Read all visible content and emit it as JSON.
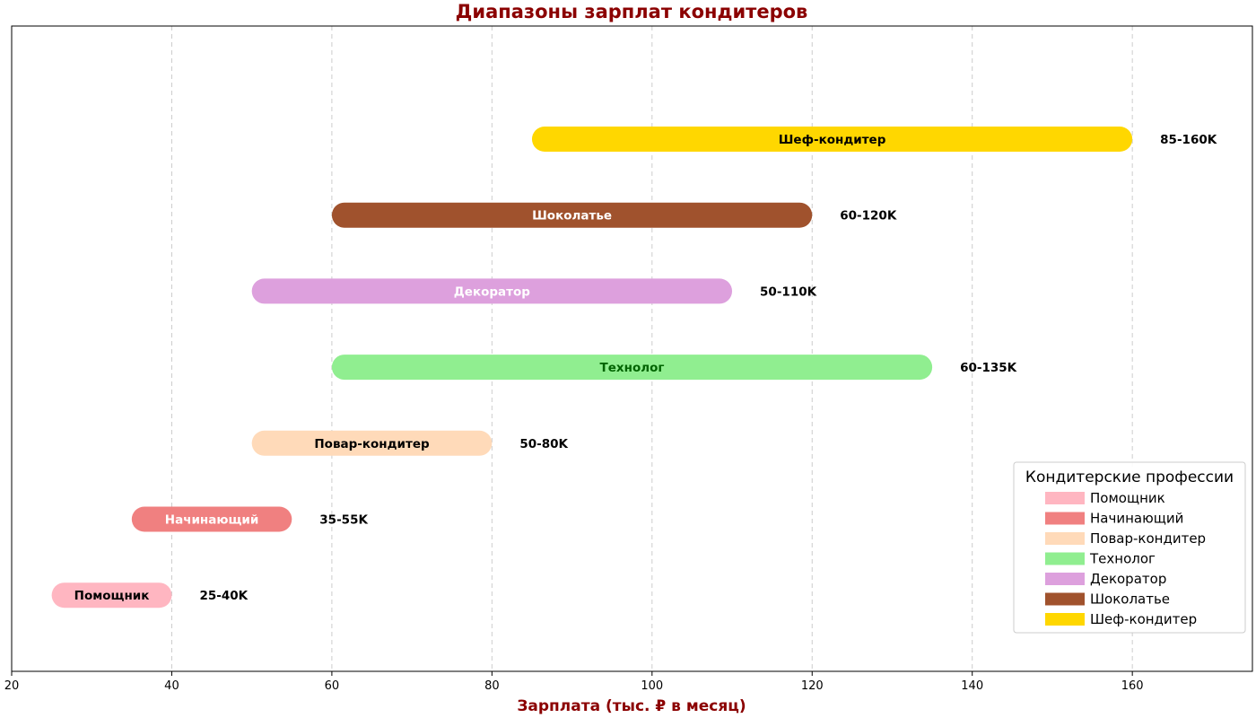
{
  "chart_data": {
    "type": "range-bar",
    "title": "Диапазоны зарплат кондитеров",
    "xlabel": "Зарплата (тыс. ₽ в месяц)",
    "ylabel": "",
    "xlim": [
      20,
      175
    ],
    "xticks": [
      20,
      40,
      60,
      80,
      100,
      120,
      140,
      160
    ],
    "grid": "x-dashed",
    "categories": [
      "Помощник",
      "Начинающий",
      "Повар-кондитер",
      "Технолог",
      "Декоратор",
      "Шоколатье",
      "Шеф-кондитер"
    ],
    "ranges": [
      {
        "name": "Помощник",
        "min": 25,
        "max": 40,
        "color": "#FFB6C1",
        "label_color": "#000000",
        "range_label": "25-40K"
      },
      {
        "name": "Начинающий",
        "min": 35,
        "max": 55,
        "color": "#F08080",
        "label_color": "#FFFFFF",
        "range_label": "35-55K"
      },
      {
        "name": "Повар-кондитер",
        "min": 50,
        "max": 80,
        "color": "#FFDAB9",
        "label_color": "#000000",
        "range_label": "50-80K"
      },
      {
        "name": "Технолог",
        "min": 60,
        "max": 135,
        "color": "#90EE90",
        "label_color": "#006400",
        "range_label": "60-135K"
      },
      {
        "name": "Декоратор",
        "min": 50,
        "max": 110,
        "color": "#DDA0DD",
        "label_color": "#FFFFFF",
        "range_label": "50-110K"
      },
      {
        "name": "Шоколатье",
        "min": 60,
        "max": 120,
        "color": "#A0522D",
        "label_color": "#FFFFFF",
        "range_label": "60-120K"
      },
      {
        "name": "Шеф-кондитер",
        "min": 85,
        "max": 160,
        "color": "#FFD700",
        "label_color": "#000000",
        "range_label": "85-160K"
      }
    ],
    "legend": {
      "title": "Кондитерские профессии",
      "position": "lower-right"
    },
    "colors": {
      "title": "#8B0000",
      "xlabel": "#8B0000",
      "grid": "#cccccc"
    }
  }
}
